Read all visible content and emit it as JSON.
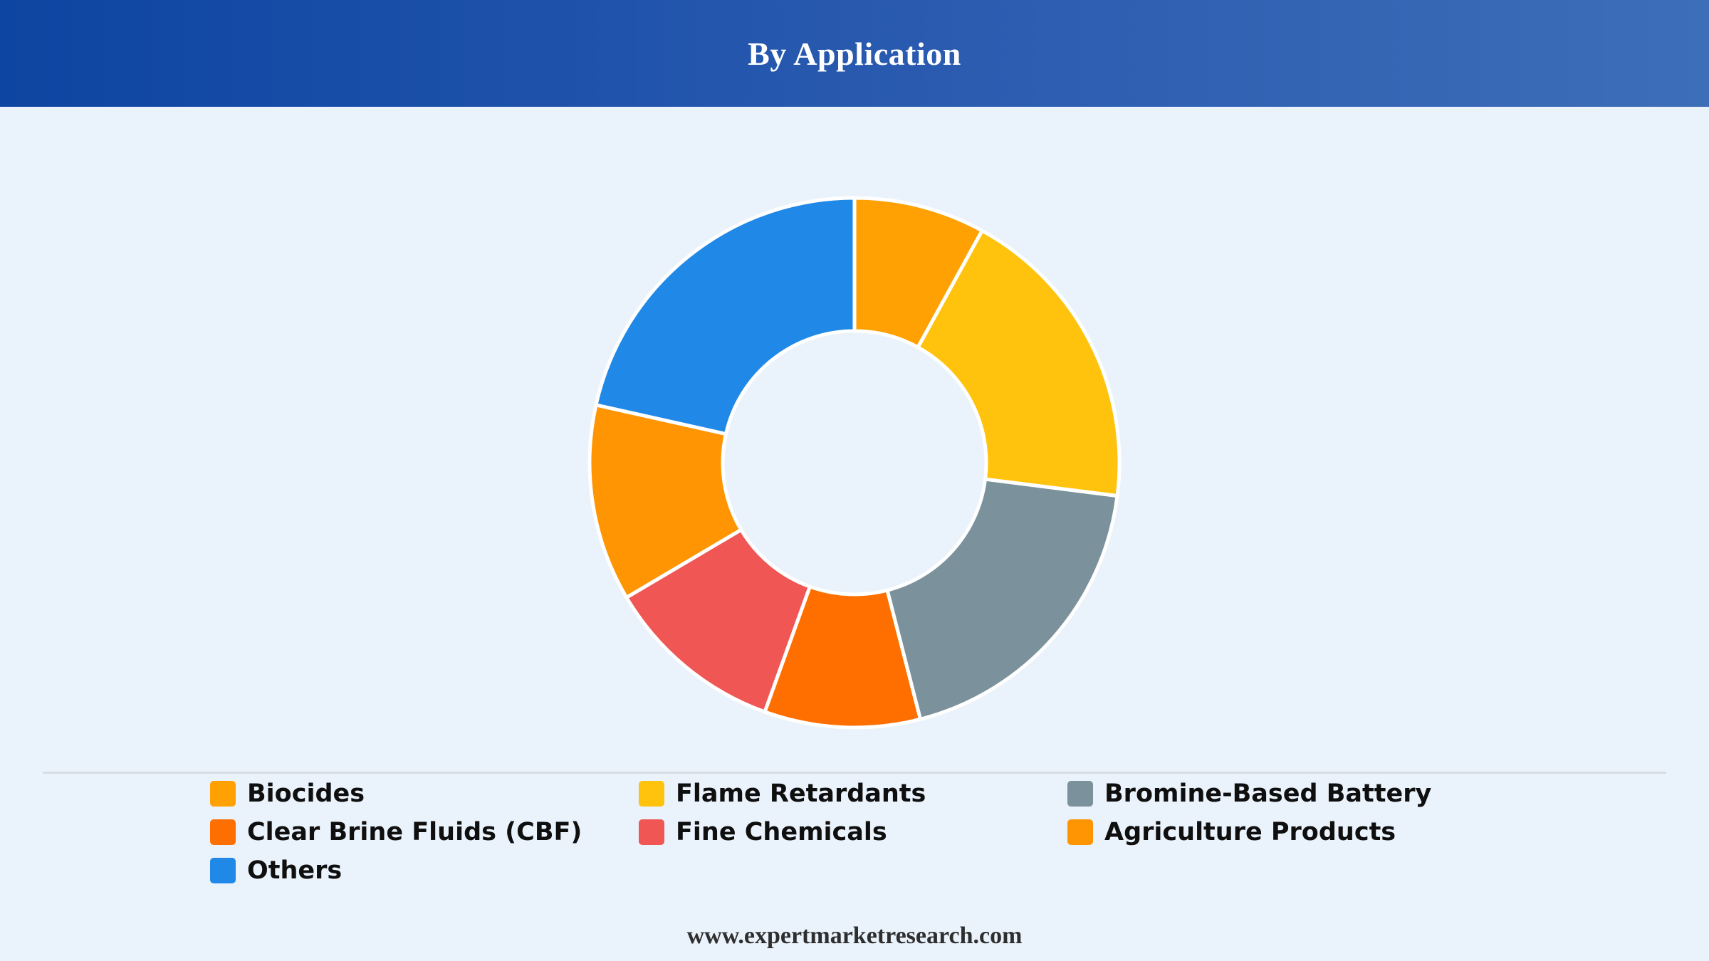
{
  "header": {
    "title": "By Application"
  },
  "chart_data": {
    "type": "pie",
    "variant": "donut",
    "legend_position": "bottom",
    "labels": [
      "Biocides",
      "Flame Retardants",
      "Bromine-Based Battery",
      "Clear Brine Fluids (CBF)",
      "Fine Chemicals",
      "Agriculture Products",
      "Others"
    ],
    "values": [
      8,
      19,
      19,
      9.5,
      11,
      12,
      21.5
    ],
    "colors": [
      "#ffa102",
      "#ffc30d",
      "#7b929c",
      "#ff6f00",
      "#ef5654",
      "#ff9502",
      "#2088e7"
    ]
  },
  "footer": {
    "text": "www.expertmarketresearch.com"
  }
}
